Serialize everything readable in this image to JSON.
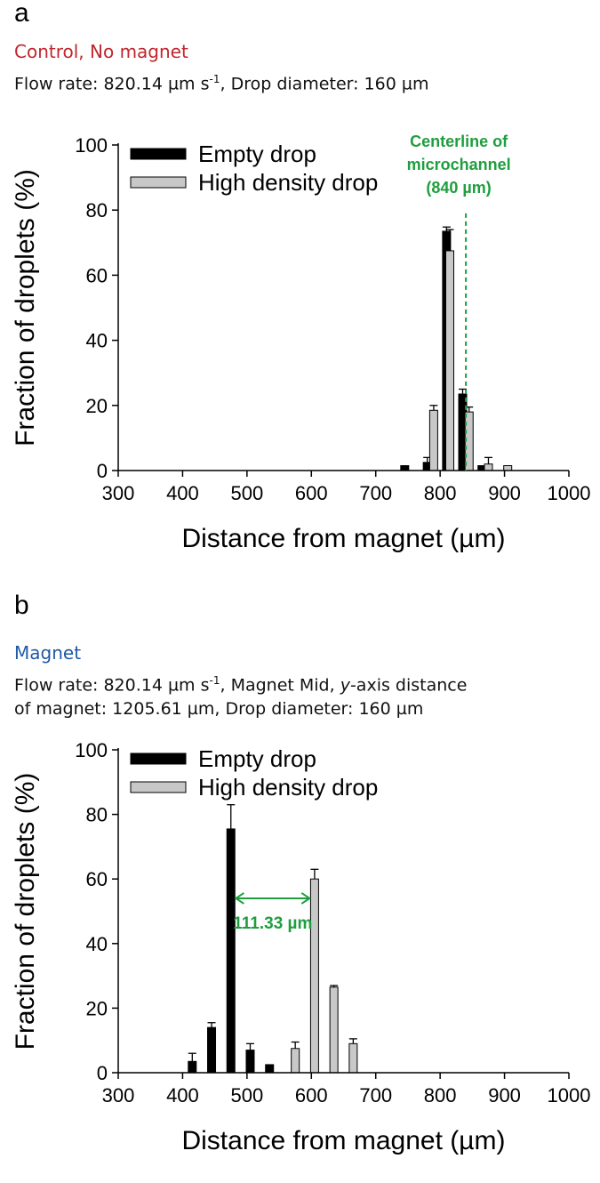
{
  "panels": [
    {
      "letter": "a",
      "subtitle": "Control, No magnet",
      "subtitle_color": "#c0262c",
      "info_lines": [
        {
          "pre": "Flow rate: 820.14 µm s",
          "sup": "-1",
          "post": ", Drop diameter: 160 µm"
        }
      ]
    },
    {
      "letter": "b",
      "subtitle": "Magnet",
      "subtitle_color": "#1f5aa6",
      "info_lines": [
        {
          "pre": "Flow rate: 820.14 µm s",
          "sup": "-1",
          "post": ", Magnet Mid, ",
          "italic": "y",
          "post2": "-axis distance"
        },
        {
          "pre": "of magnet: 1205.61 µm, Drop diameter: 160 µm"
        }
      ]
    }
  ],
  "chart_data": [
    {
      "type": "bar",
      "xlabel": "Distance from magnet (µm)",
      "ylabel": "Fraction of droplets (%)",
      "xlim": [
        300,
        1000
      ],
      "ylim": [
        0,
        100
      ],
      "xticks": [
        "300",
        "400",
        "500",
        "600",
        "700",
        "800",
        "900",
        "1000"
      ],
      "yticks": [
        "0",
        "20",
        "40",
        "60",
        "80",
        "100"
      ],
      "legend": "top-left",
      "series": [
        {
          "name": "Empty drop",
          "color": "#000000",
          "x": [
            745,
            780,
            810,
            835,
            865
          ],
          "values": [
            1.5,
            2.5,
            73.5,
            23.5,
            1.5
          ],
          "errors": [
            0,
            1.5,
            1.3,
            1.5,
            0
          ]
        },
        {
          "name": "High density drop",
          "color": "#c8c8c8",
          "x": [
            790,
            815,
            845,
            875,
            905
          ],
          "values": [
            18.5,
            67.5,
            18,
            2,
            1.5
          ],
          "errors": [
            1.5,
            6.5,
            1.5,
            2,
            0
          ]
        }
      ],
      "annotation": {
        "type": "vline",
        "x": 840,
        "color": "#1e9e3e",
        "label_lines": [
          "Centerline of",
          "microchannel",
          "(840 µm)"
        ]
      }
    },
    {
      "type": "bar",
      "xlabel": "Distance from magnet (µm)",
      "ylabel": "Fraction of droplets (%)",
      "xlim": [
        300,
        1000
      ],
      "ylim": [
        0,
        100
      ],
      "xticks": [
        "300",
        "400",
        "500",
        "600",
        "700",
        "800",
        "900",
        "1000"
      ],
      "yticks": [
        "0",
        "20",
        "40",
        "60",
        "80",
        "100"
      ],
      "legend": "top-left",
      "series": [
        {
          "name": "Empty drop",
          "color": "#000000",
          "x": [
            415,
            445,
            475,
            505,
            535
          ],
          "values": [
            3.5,
            14,
            75.5,
            7,
            2.5
          ],
          "errors": [
            2.5,
            1.5,
            7.5,
            2,
            0
          ]
        },
        {
          "name": "High density drop",
          "color": "#c8c8c8",
          "x": [
            575,
            605,
            635,
            665
          ],
          "values": [
            7.5,
            60,
            26.5,
            9
          ],
          "errors": [
            2,
            3,
            0.5,
            1.5
          ]
        }
      ],
      "annotation": {
        "type": "double-arrow",
        "x1": 480,
        "x2": 600,
        "y": 54,
        "color": "#1e9e3e",
        "label": "111.33 µm"
      }
    }
  ]
}
